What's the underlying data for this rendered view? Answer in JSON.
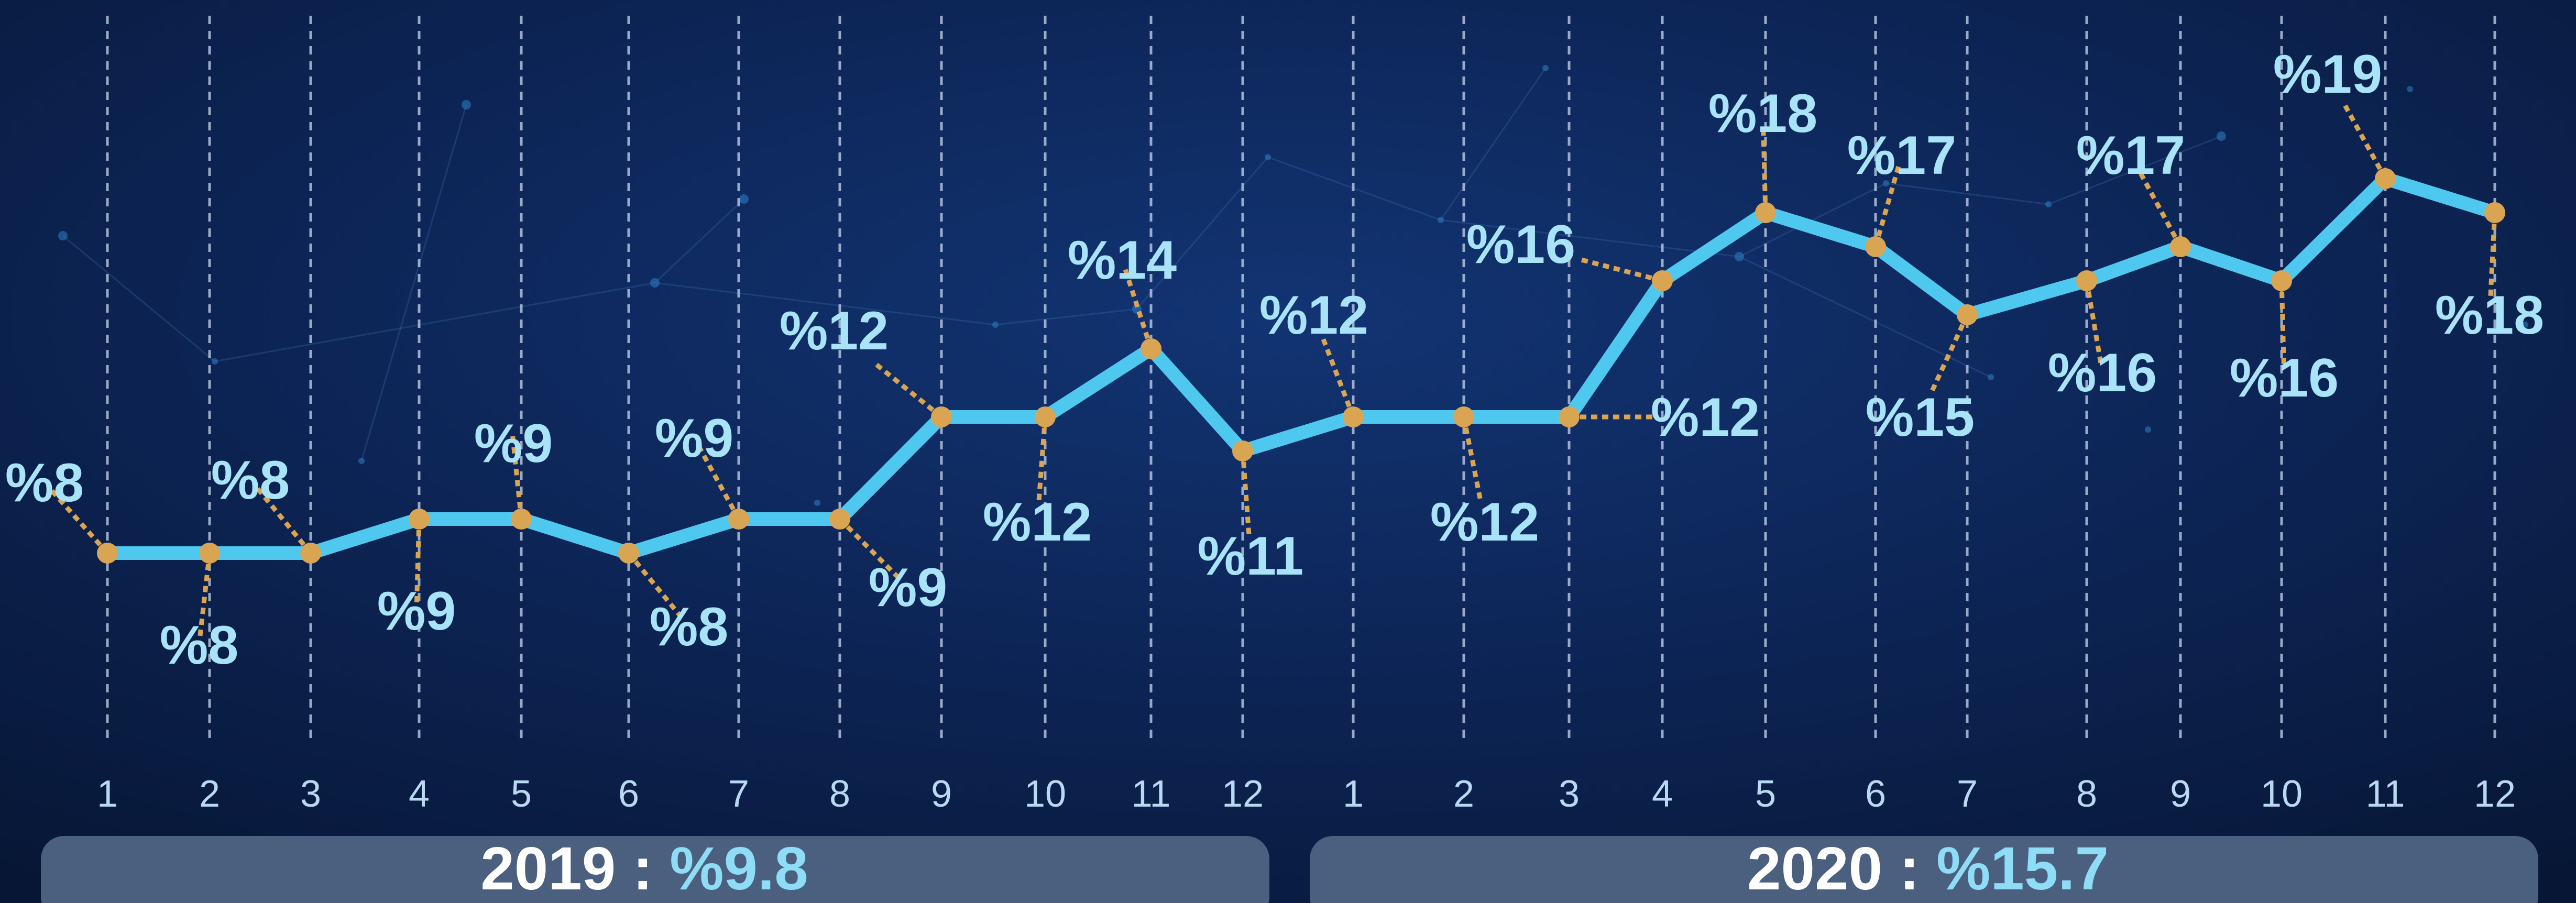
{
  "chart_data": {
    "type": "line",
    "x": [
      "1",
      "2",
      "3",
      "4",
      "5",
      "6",
      "7",
      "8",
      "9",
      "10",
      "11",
      "12",
      "1",
      "2",
      "3",
      "4",
      "5",
      "6",
      "7",
      "8",
      "9",
      "10",
      "11",
      "12"
    ],
    "values": [
      8,
      8,
      8,
      9,
      9,
      8,
      9,
      9,
      12,
      12,
      14,
      11,
      12,
      12,
      12,
      16,
      18,
      17,
      15,
      16,
      17,
      16,
      19,
      18
    ],
    "data_labels": [
      "%8",
      "%8",
      "%8",
      "%9",
      "%9",
      "%8",
      "%9",
      "%9",
      "%12",
      "%12",
      "%14",
      "%11",
      "%12",
      "%12",
      "%12",
      "%16",
      "%18",
      "%17",
      "%15",
      "%16",
      "%17",
      "%16",
      "%19",
      "%18"
    ],
    "gridlines": "vertical dashed",
    "colors": {
      "line": "#4fc8ef",
      "marker": "#d9a553",
      "label": "#a8e3f8",
      "background": "#0a1d44",
      "footer_bar": "#4a607e"
    }
  },
  "footer": [
    {
      "year": "2019",
      "separator": " : ",
      "value": "%9.8"
    },
    {
      "year": "2020",
      "separator": " : ",
      "value": "%15.7"
    }
  ]
}
